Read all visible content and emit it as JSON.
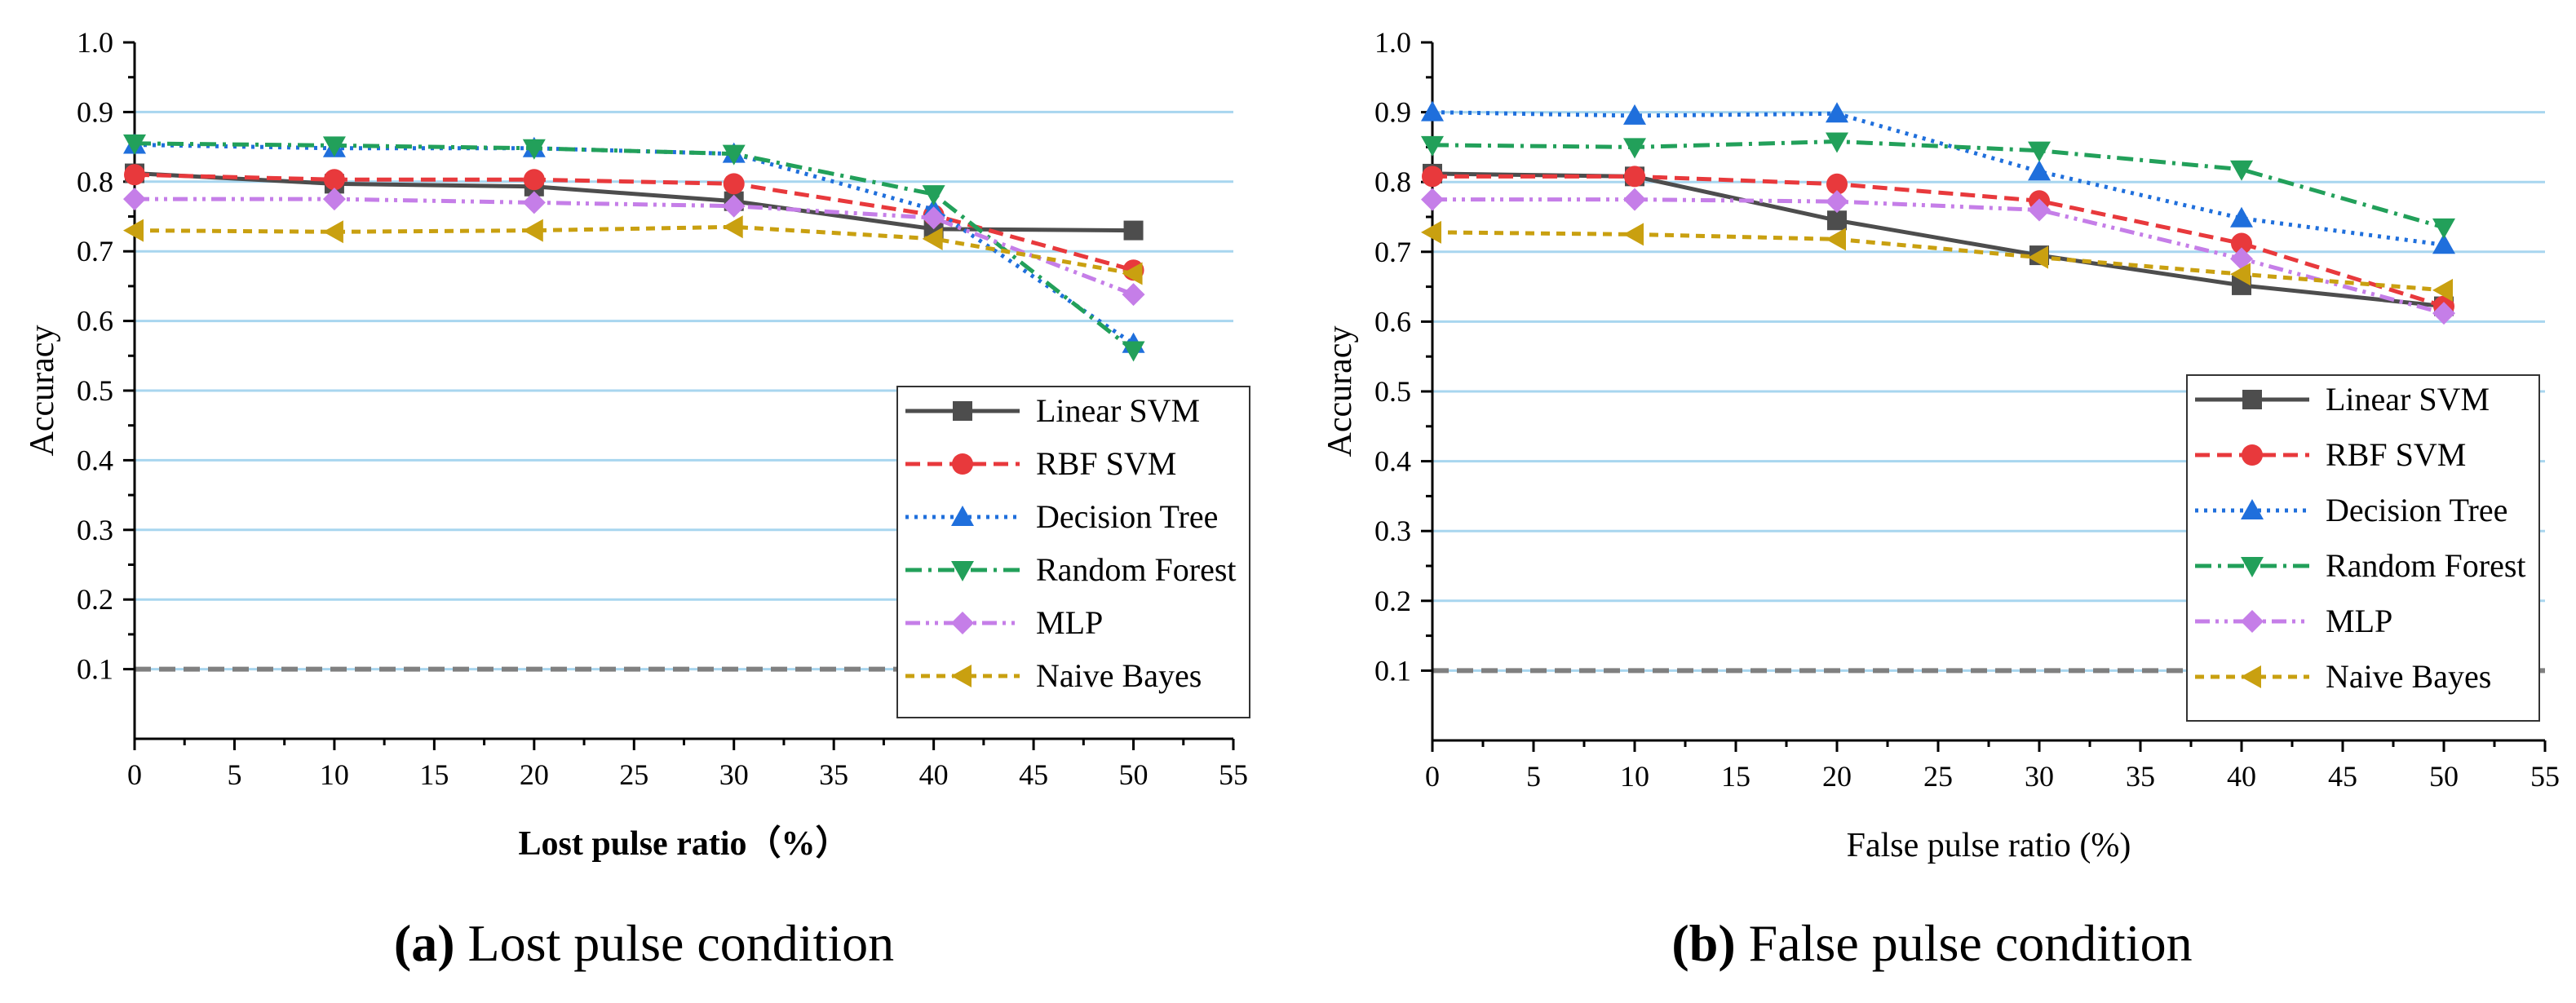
{
  "colors": {
    "linear_svm": "#4d4d4d",
    "rbf_svm": "#e8393c",
    "decision_tree": "#1f6fdc",
    "random_forest": "#22a05a",
    "mlp": "#c57ee8",
    "naive_bayes": "#c9a010",
    "grid": "#a8d6ef",
    "baseline": "#808080"
  },
  "chart_data": [
    {
      "type": "line",
      "title": "",
      "xlabel": "Lost pulse ratio（%）",
      "ylabel": "Accuracy",
      "xlim": [
        0,
        55
      ],
      "ylim": [
        0.0,
        1.0
      ],
      "x_ticks": [
        "0",
        "5",
        "10",
        "15",
        "20",
        "25",
        "30",
        "35",
        "40",
        "45",
        "50",
        "55"
      ],
      "y_ticks": [
        "0.1",
        "0.2",
        "0.3",
        "0.4",
        "0.5",
        "0.6",
        "0.7",
        "0.8",
        "0.9",
        "1.0"
      ],
      "grid": "horizontal",
      "legend_position": "lower-right",
      "caption": {
        "label": "(a)",
        "text": " Lost pulse condition"
      },
      "baseline": 0.1,
      "x": [
        0,
        10,
        20,
        30,
        40,
        50
      ],
      "series": [
        {
          "name": "Linear SVM",
          "key": "linear_svm",
          "values": [
            0.812,
            0.797,
            0.793,
            0.772,
            0.732,
            0.73
          ],
          "dash": "solid",
          "marker": "square"
        },
        {
          "name": "RBF SVM",
          "key": "rbf_svm",
          "values": [
            0.81,
            0.803,
            0.803,
            0.797,
            0.752,
            0.673
          ],
          "dash": "dash",
          "marker": "circle"
        },
        {
          "name": "Decision Tree",
          "key": "decision_tree",
          "values": [
            0.853,
            0.848,
            0.848,
            0.84,
            0.76,
            0.567
          ],
          "dash": "dot",
          "marker": "triangle-up"
        },
        {
          "name": "Random Forest",
          "key": "random_forest",
          "values": [
            0.855,
            0.852,
            0.848,
            0.84,
            0.782,
            0.558
          ],
          "dash": "dashdot",
          "marker": "triangle-down"
        },
        {
          "name": "MLP",
          "key": "mlp",
          "values": [
            0.775,
            0.775,
            0.77,
            0.765,
            0.748,
            0.638
          ],
          "dash": "dashdotdot",
          "marker": "diamond"
        },
        {
          "name": "Naive Bayes",
          "key": "naive_bayes",
          "values": [
            0.73,
            0.728,
            0.73,
            0.735,
            0.718,
            0.668
          ],
          "dash": "shortdash",
          "marker": "triangle-left"
        }
      ]
    },
    {
      "type": "line",
      "title": "",
      "xlabel": "False pulse ratio (%)",
      "ylabel": "Accuracy",
      "xlim": [
        0,
        55
      ],
      "ylim": [
        0.0,
        1.0
      ],
      "x_ticks": [
        "0",
        "5",
        "10",
        "15",
        "20",
        "25",
        "30",
        "35",
        "40",
        "45",
        "50",
        "55"
      ],
      "y_ticks": [
        "0.1",
        "0.2",
        "0.3",
        "0.4",
        "0.5",
        "0.6",
        "0.7",
        "0.8",
        "0.9",
        "1.0"
      ],
      "grid": "horizontal",
      "legend_position": "lower-right",
      "caption": {
        "label": "(b)",
        "text": " False pulse condition"
      },
      "baseline": 0.1,
      "x": [
        0,
        10,
        20,
        30,
        40,
        50
      ],
      "series": [
        {
          "name": "Linear SVM",
          "key": "linear_svm",
          "values": [
            0.812,
            0.808,
            0.745,
            0.695,
            0.652,
            0.622
          ],
          "dash": "solid",
          "marker": "square"
        },
        {
          "name": "RBF SVM",
          "key": "rbf_svm",
          "values": [
            0.808,
            0.808,
            0.797,
            0.773,
            0.712,
            0.622
          ],
          "dash": "dash",
          "marker": "circle"
        },
        {
          "name": "Decision Tree",
          "key": "decision_tree",
          "values": [
            0.9,
            0.895,
            0.898,
            0.815,
            0.748,
            0.71
          ],
          "dash": "dot",
          "marker": "triangle-up"
        },
        {
          "name": "Random Forest",
          "key": "random_forest",
          "values": [
            0.853,
            0.85,
            0.858,
            0.845,
            0.818,
            0.735
          ],
          "dash": "dashdot",
          "marker": "triangle-down"
        },
        {
          "name": "MLP",
          "key": "mlp",
          "values": [
            0.775,
            0.775,
            0.772,
            0.76,
            0.69,
            0.612
          ],
          "dash": "dashdotdot",
          "marker": "diamond"
        },
        {
          "name": "Naive Bayes",
          "key": "naive_bayes",
          "values": [
            0.728,
            0.725,
            0.718,
            0.692,
            0.668,
            0.645
          ],
          "dash": "shortdash",
          "marker": "triangle-left"
        }
      ]
    }
  ]
}
